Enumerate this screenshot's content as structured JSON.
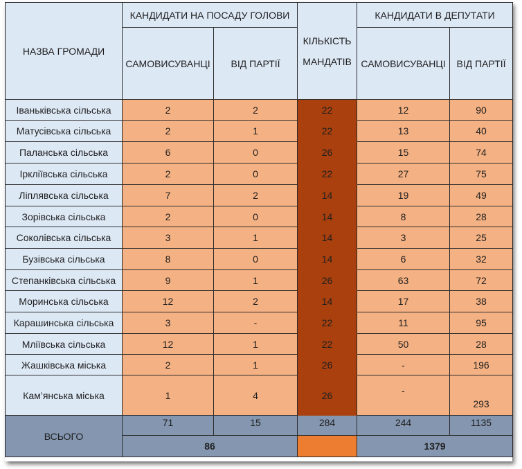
{
  "header": {
    "name_col": "НАЗВА ГРОМАДИ",
    "head_group": "КАНДИДАТИ НА ПОСАДУ ГОЛОВИ",
    "mandates": "КІЛЬКІСТЬ МАНДАТІВ",
    "deputies_group": "КАНДИДАТИ В ДЕПУТАТИ",
    "self": "САМОВИСУВАНЦІ",
    "party": "ВІД ПАРТІЇ"
  },
  "rows": [
    {
      "name": "Іваньківська сільська",
      "head_self": "2",
      "head_party": "2",
      "mandates": "22",
      "dep_self": "12",
      "dep_party": "90"
    },
    {
      "name": "Матусівська сільська",
      "head_self": "2",
      "head_party": "1",
      "mandates": "22",
      "dep_self": "13",
      "dep_party": "40"
    },
    {
      "name": "Паланська сільська",
      "head_self": "6",
      "head_party": "0",
      "mandates": "26",
      "dep_self": "15",
      "dep_party": "74"
    },
    {
      "name": "Ірклiївська сільська",
      "head_self": "2",
      "head_party": "0",
      "mandates": "22",
      "dep_self": "27",
      "dep_party": "75"
    },
    {
      "name": "Ліплявська сільська",
      "head_self": "7",
      "head_party": "2",
      "mandates": "14",
      "dep_self": "19",
      "dep_party": "49"
    },
    {
      "name": "Зорівська сільська",
      "head_self": "2",
      "head_party": "0",
      "mandates": "14",
      "dep_self": "8",
      "dep_party": "28"
    },
    {
      "name": "Соколівська сільська",
      "head_self": "3",
      "head_party": "1",
      "mandates": "14",
      "dep_self": "3",
      "dep_party": "25"
    },
    {
      "name": "Бузівська сільська",
      "head_self": "8",
      "head_party": "0",
      "mandates": "14",
      "dep_self": "6",
      "dep_party": "32"
    },
    {
      "name": "Степанківська сільська",
      "head_self": "9",
      "head_party": "1",
      "mandates": "26",
      "dep_self": "63",
      "dep_party": "72"
    },
    {
      "name": "Моринська сільська",
      "head_self": "12",
      "head_party": "2",
      "mandates": "14",
      "dep_self": "17",
      "dep_party": "38"
    },
    {
      "name": "Карашинська сільська",
      "head_self": "3",
      "head_party": "-",
      "mandates": "22",
      "dep_self": "11",
      "dep_party": "95"
    },
    {
      "name": "Мліївська сільська",
      "head_self": "12",
      "head_party": "1",
      "mandates": "22",
      "dep_self": "50",
      "dep_party": "28"
    },
    {
      "name": "Жашківська міська",
      "head_self": "2",
      "head_party": "1",
      "mandates": "26",
      "dep_self": "-",
      "dep_party": "196"
    },
    {
      "name": "Кам’янська міська",
      "head_self": "1",
      "head_party": "4",
      "mandates": "26",
      "dep_self": "-",
      "dep_party": "293"
    }
  ],
  "total": {
    "label": "ВСЬОГО",
    "head_self": "71",
    "head_party": "15",
    "mandates": "284",
    "dep_self": "244",
    "dep_party": "1135",
    "head_sum": "86",
    "dep_sum": "1379"
  },
  "colors": {
    "header_bg": "#dde8f5",
    "cell_bg": "#f4b183",
    "mandates_bg": "#a9400e",
    "total_bg": "#8496b0",
    "total_mandates_bg": "#ed7d31"
  }
}
